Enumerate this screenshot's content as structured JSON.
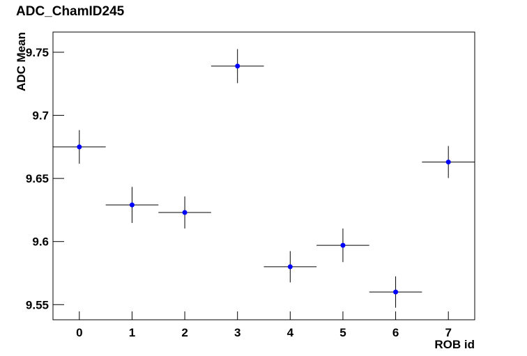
{
  "chart_data": {
    "type": "scatter",
    "title": "ADC_ChamID245",
    "xlabel": "ROB id",
    "ylabel": "ADC Mean",
    "x": [
      0,
      1,
      2,
      3,
      4,
      5,
      6,
      7
    ],
    "values": [
      9.675,
      9.629,
      9.623,
      9.739,
      9.58,
      9.597,
      9.56,
      9.663
    ],
    "yerr": [
      0.0133,
      0.0143,
      0.0127,
      0.0135,
      0.0124,
      0.0133,
      0.0124,
      0.0127
    ],
    "xerr": [
      0.5,
      0.5,
      0.5,
      0.5,
      0.5,
      0.5,
      0.5,
      0.5
    ],
    "color": "#0000ff",
    "xlim": [
      -0.5,
      7.5
    ],
    "xticks": [
      0,
      1,
      2,
      3,
      4,
      5,
      6,
      7
    ],
    "ylim": [
      9.538,
      9.766
    ],
    "yticks": [
      9.55,
      9.6,
      9.65,
      9.7,
      9.75
    ]
  }
}
